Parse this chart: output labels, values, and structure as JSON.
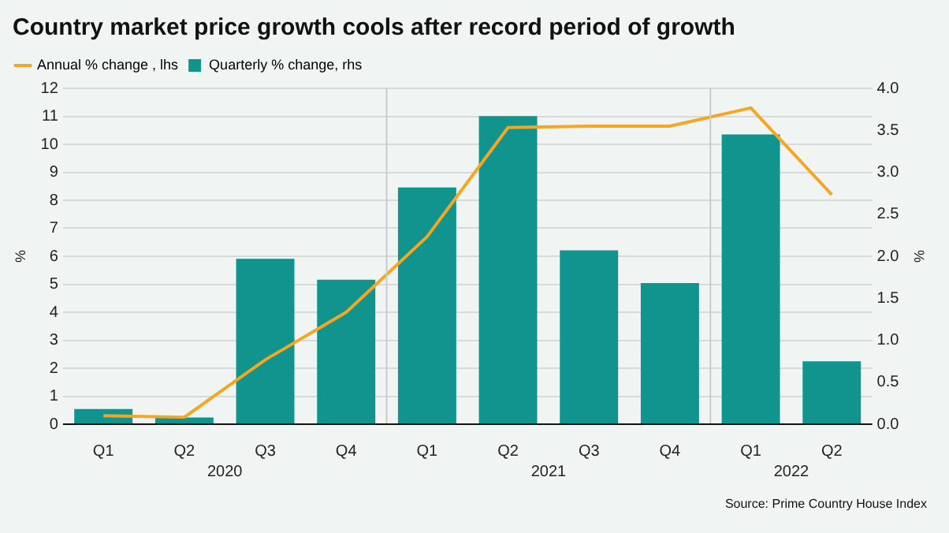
{
  "chart_data": {
    "type": "bar",
    "title": "Country market price growth cools after record period of growth",
    "categories": [
      "Q1",
      "Q2",
      "Q3",
      "Q4",
      "Q1",
      "Q2",
      "Q3",
      "Q4",
      "Q1",
      "Q2"
    ],
    "series": [
      {
        "name": "Annual % change , lhs",
        "type": "line",
        "color": "#f5a623",
        "values": [
          0.3,
          0.25,
          2.3,
          4.0,
          6.7,
          10.6,
          10.65,
          10.65,
          11.3,
          8.2
        ]
      },
      {
        "name": "Quarterly % change, rhs",
        "axis": "y2",
        "color": "#10948d",
        "values": [
          0.18,
          0.08,
          1.97,
          1.72,
          2.82,
          3.67,
          2.07,
          1.68,
          3.45,
          0.75
        ]
      }
    ],
    "ylabel": "%",
    "y2label": "%",
    "ylim": [
      0,
      12
    ],
    "yticks": [
      0,
      1,
      2,
      3,
      4,
      5,
      6,
      7,
      8,
      9,
      10,
      11,
      12
    ],
    "y2lim": [
      0,
      4
    ],
    "y2ticks": [
      {
        "value": 0,
        "label": "0.0"
      },
      {
        "value": 0.5,
        "label": "0.5"
      },
      {
        "value": 1,
        "label": "1.0"
      },
      {
        "value": 1.5,
        "label": "1.5"
      },
      {
        "value": 2,
        "label": "2.0"
      },
      {
        "value": 2.5,
        "label": "2.5"
      },
      {
        "value": 3,
        "label": "3.0"
      },
      {
        "value": 3.5,
        "label": "3.5"
      },
      {
        "value": 4,
        "label": "4.0"
      }
    ],
    "grid": "y",
    "legend": "top left",
    "marker": "none",
    "annotations": [
      "2020",
      "2021",
      "2022",
      "Source: Prime Country House Index"
    ]
  }
}
